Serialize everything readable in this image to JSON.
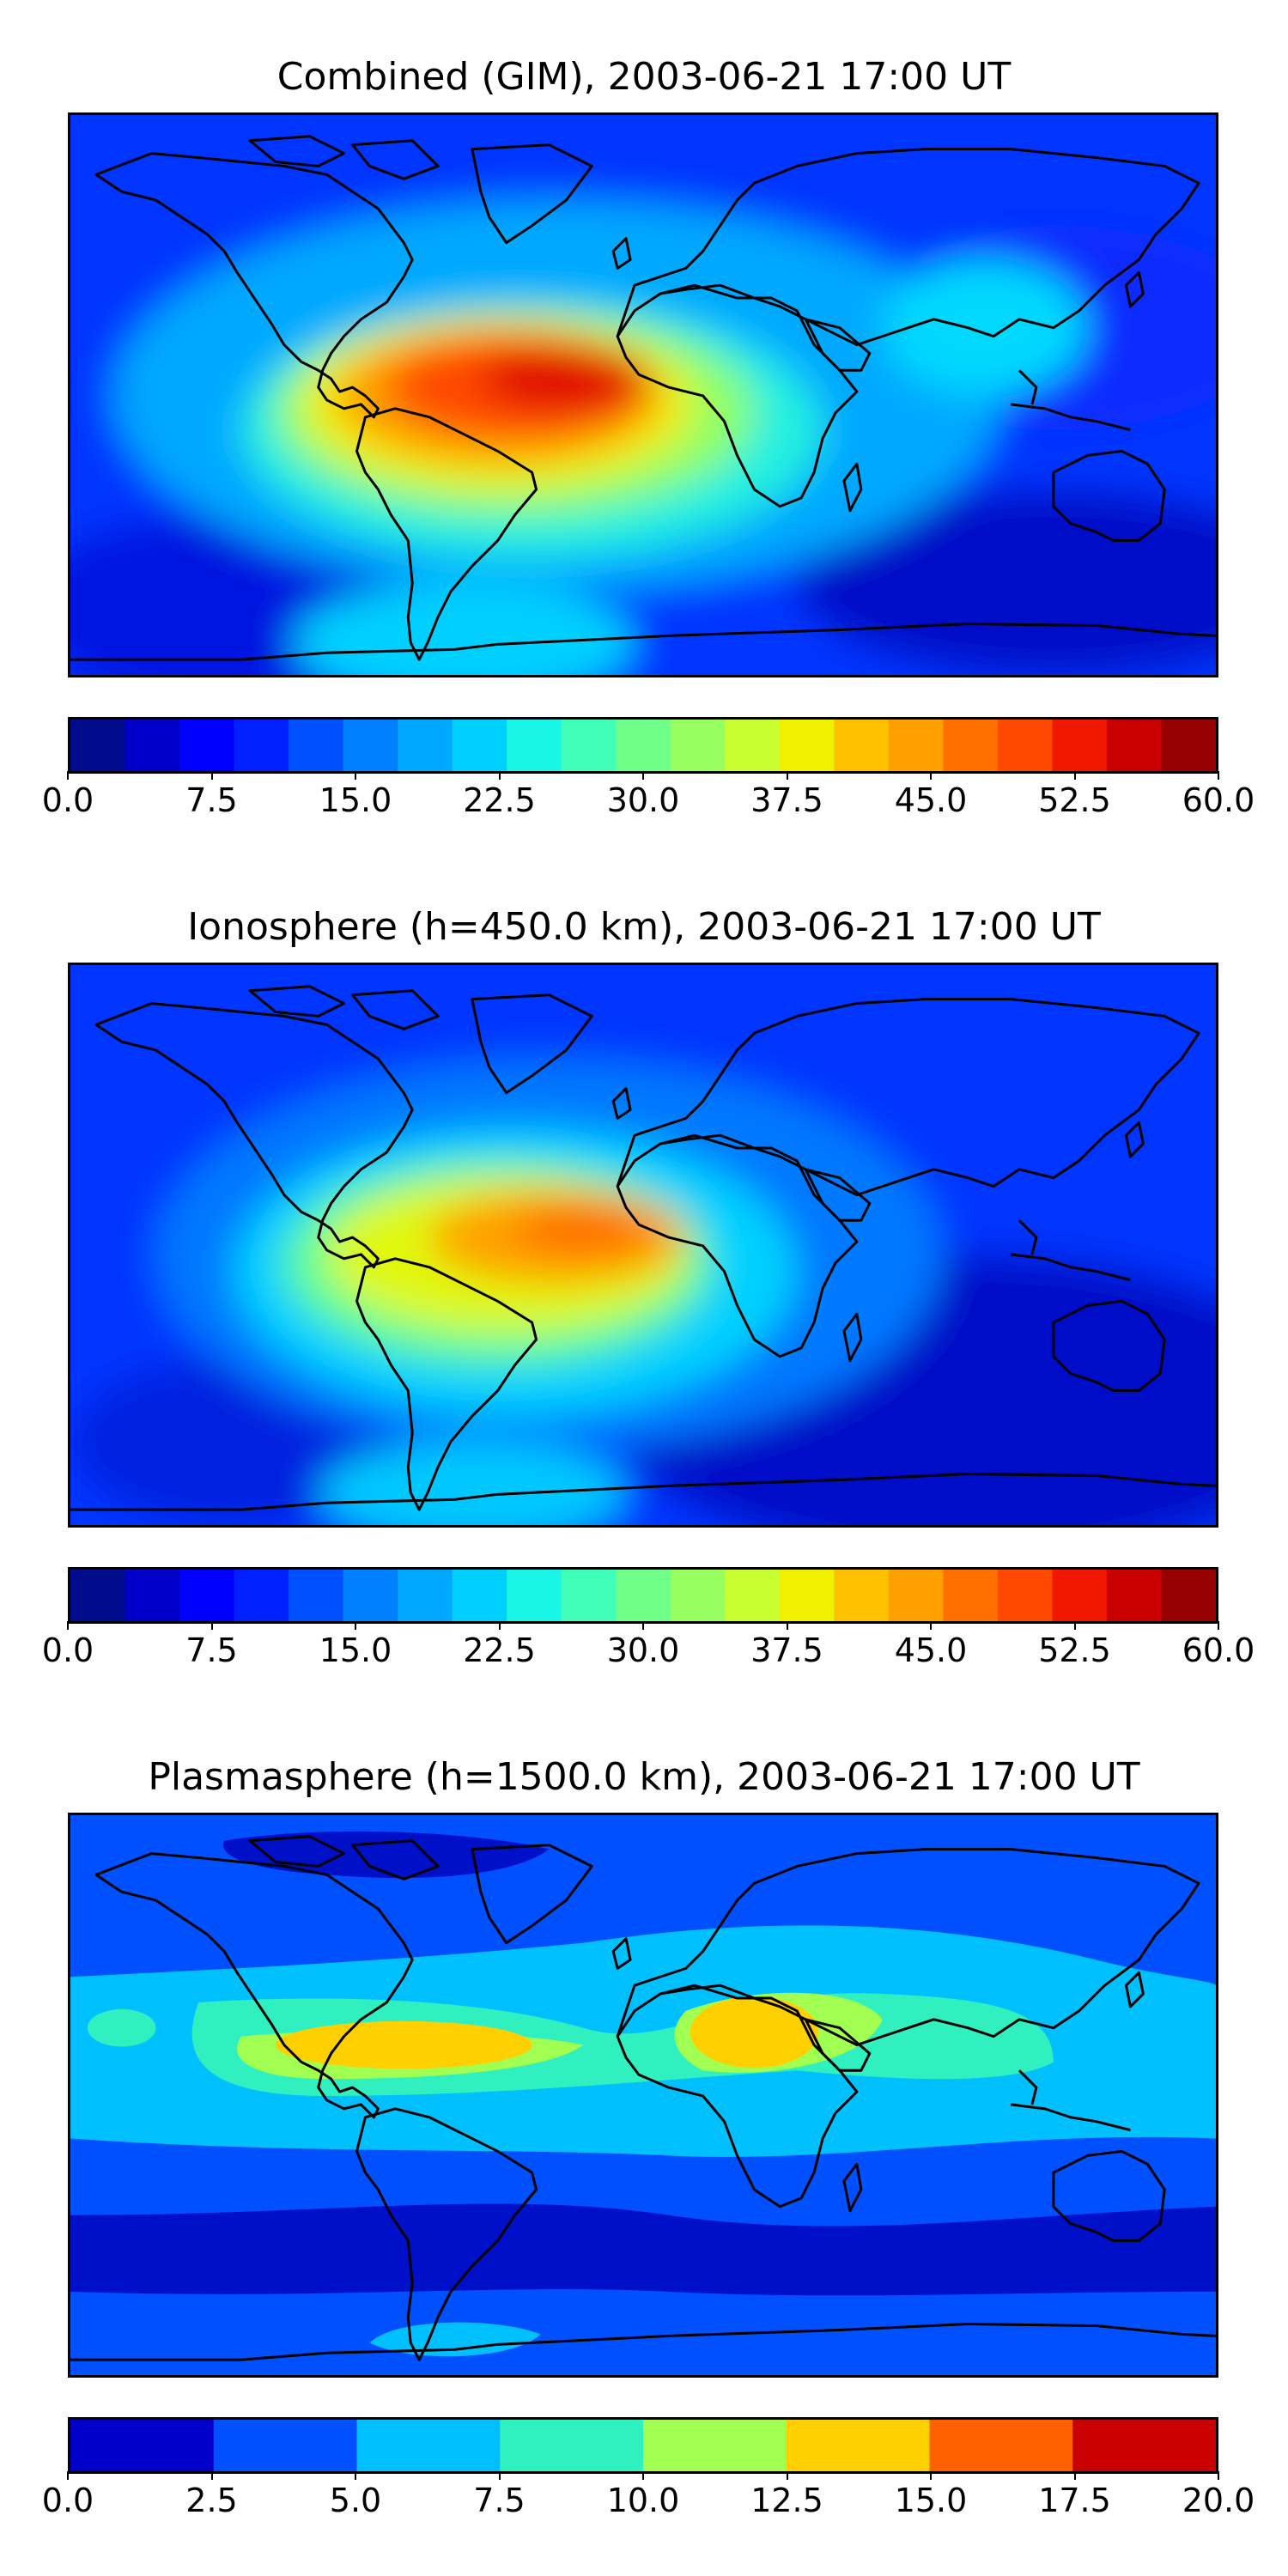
{
  "panels": [
    {
      "title": "Combined (GIM), 2003-06-21 17:00 UT",
      "colorbar": {
        "ticks": [
          "0.0",
          "7.5",
          "15.0",
          "22.5",
          "30.0",
          "37.5",
          "45.0",
          "52.5",
          "60.0"
        ],
        "tick_values": [
          0,
          7.5,
          15,
          22.5,
          30,
          37.5,
          45,
          52.5,
          60
        ],
        "range": [
          0,
          60
        ],
        "colors": [
          "#000c8c",
          "#0000c8",
          "#0000ff",
          "#0020ff",
          "#0050ff",
          "#0080ff",
          "#00a8ff",
          "#00d0ff",
          "#19f5e6",
          "#40ffb8",
          "#70ff88",
          "#98ff60",
          "#c8ff30",
          "#f0f000",
          "#ffc000",
          "#ffa000",
          "#ff7000",
          "#ff4800",
          "#f01800",
          "#c80000",
          "#960000"
        ]
      }
    },
    {
      "title": "Ionosphere  (h=450.0 km), 2003-06-21 17:00 UT",
      "colorbar": {
        "ticks": [
          "0.0",
          "7.5",
          "15.0",
          "22.5",
          "30.0",
          "37.5",
          "45.0",
          "52.5",
          "60.0"
        ],
        "tick_values": [
          0,
          7.5,
          15,
          22.5,
          30,
          37.5,
          45,
          52.5,
          60
        ],
        "range": [
          0,
          60
        ],
        "colors": [
          "#000c8c",
          "#0000c8",
          "#0000ff",
          "#0020ff",
          "#0050ff",
          "#0080ff",
          "#00a8ff",
          "#00d0ff",
          "#19f5e6",
          "#40ffb8",
          "#70ff88",
          "#98ff60",
          "#c8ff30",
          "#f0f000",
          "#ffc000",
          "#ffa000",
          "#ff7000",
          "#ff4800",
          "#f01800",
          "#c80000",
          "#960000"
        ]
      }
    },
    {
      "title": "Plasmasphere (h=1500.0 km), 2003-06-21 17:00 UT",
      "colorbar": {
        "ticks": [
          "0.0",
          "2.5",
          "5.0",
          "7.5",
          "10.0",
          "12.5",
          "15.0",
          "17.5",
          "20.0"
        ],
        "tick_values": [
          0,
          2.5,
          5,
          7.5,
          10,
          12.5,
          15,
          17.5,
          20
        ],
        "range": [
          0,
          20
        ],
        "colors": [
          "#0000c8",
          "#0050ff",
          "#00c0ff",
          "#30f0c0",
          "#a0ff50",
          "#ffd000",
          "#ff6000",
          "#c80000"
        ]
      }
    }
  ]
}
